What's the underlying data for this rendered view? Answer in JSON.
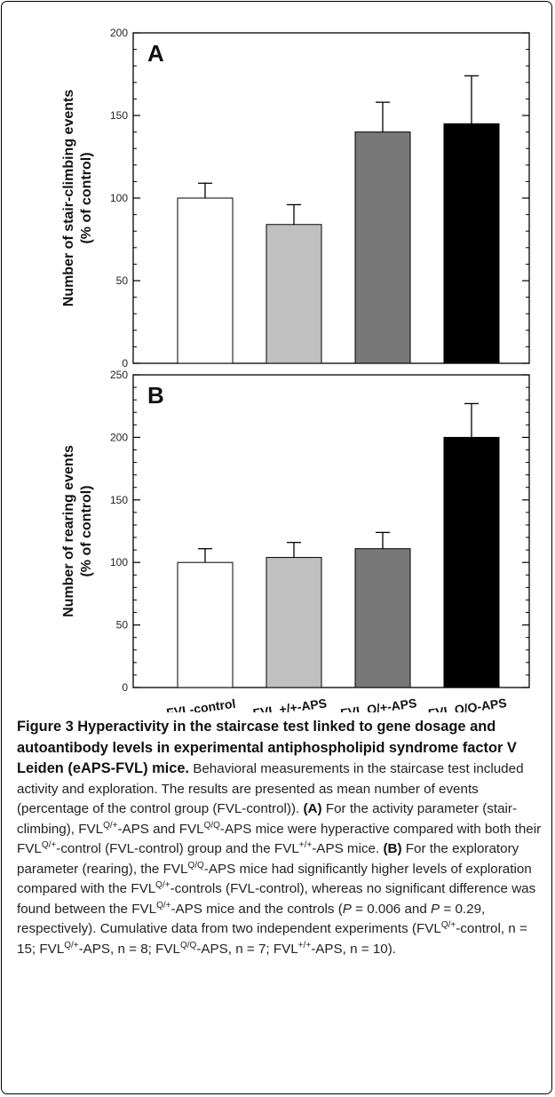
{
  "chart_data": [
    {
      "type": "bar",
      "panel_label": "A",
      "ylabel_lines": [
        "Number of stair-climbing events",
        "(% of control)"
      ],
      "categories": [
        "FVL-control",
        "FVL +/+-APS",
        "FVL Q/+-APS",
        "FVL Q/Q-APS"
      ],
      "values": [
        100,
        84,
        140,
        145
      ],
      "errors": [
        9,
        12,
        18,
        29
      ],
      "colors": [
        "#ffffff",
        "#c0c0c0",
        "#787878",
        "#000000"
      ],
      "ylim": [
        0,
        200
      ],
      "yticks": [
        0,
        50,
        100,
        150,
        200
      ],
      "yminor_step": 10,
      "grid": false
    },
    {
      "type": "bar",
      "panel_label": "B",
      "ylabel_lines": [
        "Number of rearing events",
        "(% of control)"
      ],
      "categories": [
        "FVL-control",
        "FVL +/+-APS",
        "FVL Q/+-APS",
        "FVL Q/Q-APS"
      ],
      "values": [
        100,
        104,
        111,
        200
      ],
      "errors": [
        11,
        12,
        13,
        27
      ],
      "colors": [
        "#ffffff",
        "#c0c0c0",
        "#787878",
        "#000000"
      ],
      "ylim": [
        0,
        250
      ],
      "yticks": [
        0,
        50,
        100,
        150,
        200,
        250
      ],
      "yminor_step": 10,
      "grid": false
    }
  ],
  "caption": {
    "title": "Figure 3 Hyperactivity in the staircase test linked to gene dosage and autoantibody levels in experimental antiphospholipid syndrome factor V Leiden (eAPS-FVL) mice.",
    "s1": "Behavioral measurements in the staircase test included activity and exploration. The results are presented as mean number of events (percentage of the control group (FVL-control)).",
    "a_label": "(A)",
    "a1": "For the activity parameter (stair-climbing), FVL",
    "sup_qplus": "Q/+",
    "a2": "-APS and FVL",
    "sup_qq": "Q/Q",
    "a3": "-APS mice were hyperactive compared with both their FVL",
    "a4": "-control (FVL-control) group and the FVL",
    "sup_pp": "+/+",
    "a5": "-APS mice.",
    "b_label": "(B)",
    "b1": "For the exploratory parameter (rearing), the FVL",
    "b2": "-APS mice had significantly higher levels of exploration compared with the FVL",
    "b3": "-controls (FVL-control), whereas no significant difference was found between the FVL",
    "b4": "-APS mice and the controls (",
    "p_sym": "P",
    "b5": " = 0.006 and ",
    "b6": " = 0.29, respectively).",
    "c1": "Cumulative data from two independent experiments (FVL",
    "c2": "-control, n = 15; FVL",
    "c3": "-APS, n = 8; FVL",
    "c4": "-APS, n = 7; FVL",
    "c5": "-APS, n = 10)."
  }
}
